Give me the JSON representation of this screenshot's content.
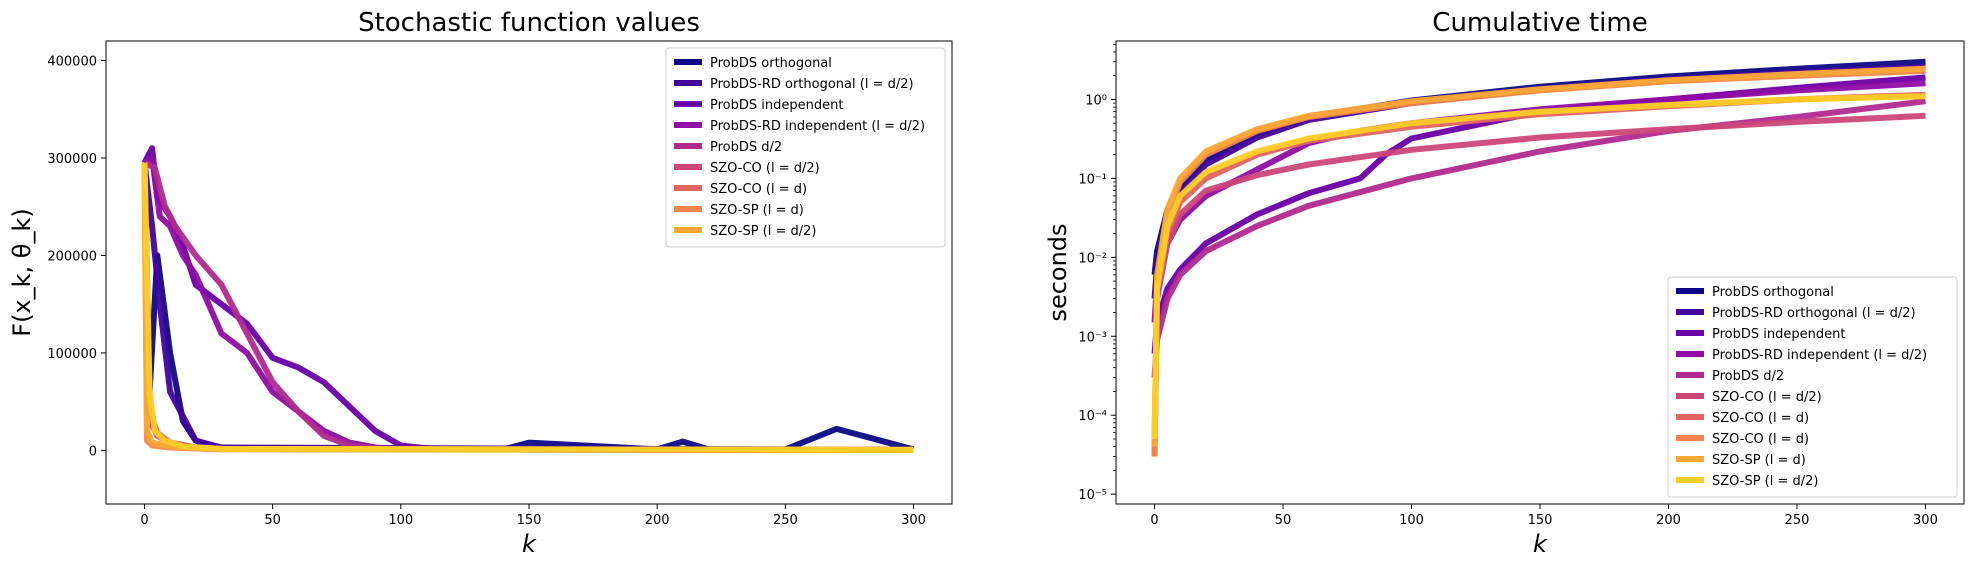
{
  "chart_data": [
    {
      "type": "line",
      "title": "Stochastic function values",
      "xlabel": "k",
      "ylabel": "F(x_k, θ_k)",
      "xlim": [
        -15,
        315
      ],
      "ylim": [
        -55000,
        420000
      ],
      "xticks": [
        0,
        50,
        100,
        150,
        200,
        250,
        300
      ],
      "yticks": [
        0,
        100000,
        200000,
        300000,
        400000
      ],
      "yscale": "linear",
      "legend_position": "top-right",
      "series": [
        {
          "name": "ProbDS orthogonal",
          "color": "#0d0887",
          "x": [
            0,
            2,
            5,
            10,
            15,
            20,
            25,
            30,
            50,
            80,
            100,
            140,
            150,
            200,
            210,
            220,
            250,
            270,
            300
          ],
          "y": [
            295000,
            60000,
            200000,
            100000,
            30000,
            10000,
            5000,
            3000,
            2000,
            1000,
            1500,
            1000,
            8000,
            1000,
            9000,
            1000,
            1000,
            22000,
            1000
          ]
        },
        {
          "name": "ProbDS-RD orthogonal (l = d/2)",
          "color": "#41049d",
          "x": [
            0,
            3,
            6,
            10,
            20,
            30,
            300
          ],
          "y": [
            295000,
            230000,
            150000,
            60000,
            10000,
            3000,
            500
          ]
        },
        {
          "name": "ProbDS independent",
          "color": "#6a00a8",
          "x": [
            0,
            3,
            5,
            10,
            15,
            20,
            30,
            40,
            50,
            60,
            70,
            80,
            90,
            100,
            110,
            120,
            300
          ],
          "y": [
            295000,
            310000,
            260000,
            240000,
            210000,
            170000,
            150000,
            130000,
            95000,
            85000,
            70000,
            45000,
            20000,
            5000,
            2000,
            1000,
            500
          ]
        },
        {
          "name": "ProbDS-RD independent (l = d/2)",
          "color": "#8f0da4",
          "x": [
            0,
            3,
            6,
            10,
            15,
            20,
            30,
            40,
            50,
            60,
            70,
            80,
            90,
            100,
            300
          ],
          "y": [
            295000,
            300000,
            240000,
            230000,
            200000,
            180000,
            120000,
            100000,
            60000,
            40000,
            20000,
            8000,
            3000,
            1000,
            500
          ]
        },
        {
          "name": "ProbDS d/2",
          "color": "#b12a90",
          "x": [
            0,
            4,
            8,
            12,
            20,
            30,
            40,
            50,
            60,
            70,
            80,
            90,
            100,
            300
          ],
          "y": [
            295000,
            290000,
            250000,
            230000,
            200000,
            170000,
            120000,
            70000,
            40000,
            15000,
            5000,
            2000,
            1000,
            500
          ]
        },
        {
          "name": "SZO-CO (l = d/2)",
          "color": "#cc4778",
          "x": [
            0,
            2,
            5,
            10,
            20,
            30,
            300
          ],
          "y": [
            295000,
            30000,
            15000,
            8000,
            3000,
            1500,
            500
          ]
        },
        {
          "name": "SZO-CO (l = d)",
          "color": "#e16462",
          "x": [
            0,
            2,
            5,
            10,
            20,
            30,
            300
          ],
          "y": [
            295000,
            40000,
            18000,
            8000,
            3000,
            1500,
            500
          ]
        },
        {
          "name": "SZO-SP (l = d)",
          "color": "#f2844b",
          "x": [
            0,
            1,
            3,
            10,
            30,
            300
          ],
          "y": [
            295000,
            10000,
            5000,
            3000,
            1000,
            500
          ]
        },
        {
          "name": "SZO-SP (l = d/2)",
          "color": "#fca636",
          "x": [
            0,
            1,
            3,
            10,
            30,
            300
          ],
          "y": [
            295000,
            20000,
            8000,
            4000,
            1500,
            500
          ]
        },
        {
          "name": "",
          "color": "#fcce25",
          "x": [
            0,
            2,
            4,
            8,
            15,
            30,
            300
          ],
          "y": [
            295000,
            60000,
            20000,
            10000,
            4000,
            1500,
            500
          ]
        }
      ]
    },
    {
      "type": "line",
      "title": "Cumulative time",
      "xlabel": "k",
      "ylabel": "seconds",
      "xlim": [
        -15,
        315
      ],
      "ylim": [
        7.5e-06,
        5.5
      ],
      "xticks": [
        0,
        50,
        100,
        150,
        200,
        250,
        300
      ],
      "yticks": [
        1e-05,
        0.0001,
        0.001,
        0.01,
        0.1,
        1
      ],
      "ytick_labels": [
        "10⁻⁵",
        "10⁻⁴",
        "10⁻³",
        "10⁻²",
        "10⁻¹",
        "10⁰"
      ],
      "yscale": "log",
      "legend_position": "lower-right",
      "series": [
        {
          "name": "ProbDS orthogonal",
          "color": "#0d0887",
          "x": [
            0,
            1,
            5,
            10,
            20,
            40,
            60,
            100,
            150,
            200,
            250,
            300
          ],
          "y": [
            0.006,
            0.012,
            0.04,
            0.08,
            0.17,
            0.37,
            0.6,
            0.97,
            1.45,
            1.95,
            2.45,
            3.0
          ]
        },
        {
          "name": "ProbDS-RD orthogonal (l = d/2)",
          "color": "#41049d",
          "x": [
            0,
            1,
            5,
            10,
            20,
            40,
            60,
            100,
            150,
            200,
            250,
            300
          ],
          "y": [
            0.003,
            0.008,
            0.03,
            0.065,
            0.15,
            0.33,
            0.55,
            0.9,
            1.35,
            1.8,
            2.2,
            2.6
          ]
        },
        {
          "name": "ProbDS independent",
          "color": "#6a00a8",
          "x": [
            0,
            1,
            5,
            10,
            20,
            40,
            60,
            80,
            90,
            100,
            150,
            200,
            250,
            300
          ],
          "y": [
            0.0006,
            0.0015,
            0.004,
            0.007,
            0.015,
            0.035,
            0.065,
            0.1,
            0.2,
            0.32,
            0.7,
            1.0,
            1.4,
            1.9
          ]
        },
        {
          "name": "ProbDS-RD independent (l = d/2)",
          "color": "#8f0da4",
          "x": [
            0,
            1,
            5,
            10,
            20,
            40,
            60,
            80,
            90,
            100,
            150,
            200,
            250,
            300
          ],
          "y": [
            0.0015,
            0.005,
            0.015,
            0.03,
            0.06,
            0.13,
            0.28,
            0.4,
            0.45,
            0.5,
            0.75,
            1.0,
            1.3,
            1.6
          ]
        },
        {
          "name": "ProbDS d/2",
          "color": "#b12a90",
          "x": [
            0,
            1,
            5,
            10,
            20,
            40,
            60,
            100,
            150,
            200,
            250,
            300
          ],
          "y": [
            0.0003,
            0.0009,
            0.003,
            0.006,
            0.012,
            0.025,
            0.045,
            0.1,
            0.22,
            0.4,
            0.6,
            0.95
          ]
        },
        {
          "name": "SZO-CO (l = d/2)",
          "color": "#cc4778",
          "x": [
            0,
            1,
            5,
            10,
            20,
            40,
            60,
            100,
            150,
            200,
            250,
            300
          ],
          "y": [
            4e-05,
            0.003,
            0.015,
            0.035,
            0.07,
            0.11,
            0.15,
            0.23,
            0.33,
            0.42,
            0.52,
            0.62
          ]
        },
        {
          "name": "SZO-CO (l = d)",
          "color": "#e16462",
          "x": [
            0,
            1,
            5,
            10,
            20,
            40,
            60,
            100,
            150,
            200,
            250,
            300
          ],
          "y": [
            3e-05,
            0.004,
            0.02,
            0.05,
            0.1,
            0.2,
            0.3,
            0.45,
            0.65,
            0.82,
            1.0,
            1.15
          ]
        },
        {
          "name": "SZO-CO (l = d)",
          "color": "#f2844b",
          "x": [
            0,
            1,
            5,
            10,
            20,
            40,
            60,
            100,
            150,
            200,
            250,
            300
          ],
          "y": [
            3e-05,
            0.005,
            0.035,
            0.09,
            0.2,
            0.4,
            0.6,
            0.9,
            1.3,
            1.7,
            2.0,
            2.3
          ]
        },
        {
          "name": "SZO-SP (l = d)",
          "color": "#fca636",
          "x": [
            0,
            1,
            5,
            10,
            20,
            40,
            60,
            100,
            150,
            200,
            250,
            300
          ],
          "y": [
            4e-05,
            0.006,
            0.04,
            0.1,
            0.22,
            0.42,
            0.62,
            0.95,
            1.35,
            1.75,
            2.1,
            2.45
          ]
        },
        {
          "name": "SZO-SP (l = d/2)",
          "color": "#fcce25",
          "x": [
            0,
            1,
            5,
            10,
            20,
            40,
            60,
            100,
            150,
            200,
            250,
            300
          ],
          "y": [
            5e-05,
            0.004,
            0.025,
            0.06,
            0.12,
            0.22,
            0.32,
            0.5,
            0.7,
            0.85,
            1.0,
            1.1
          ]
        }
      ]
    }
  ]
}
